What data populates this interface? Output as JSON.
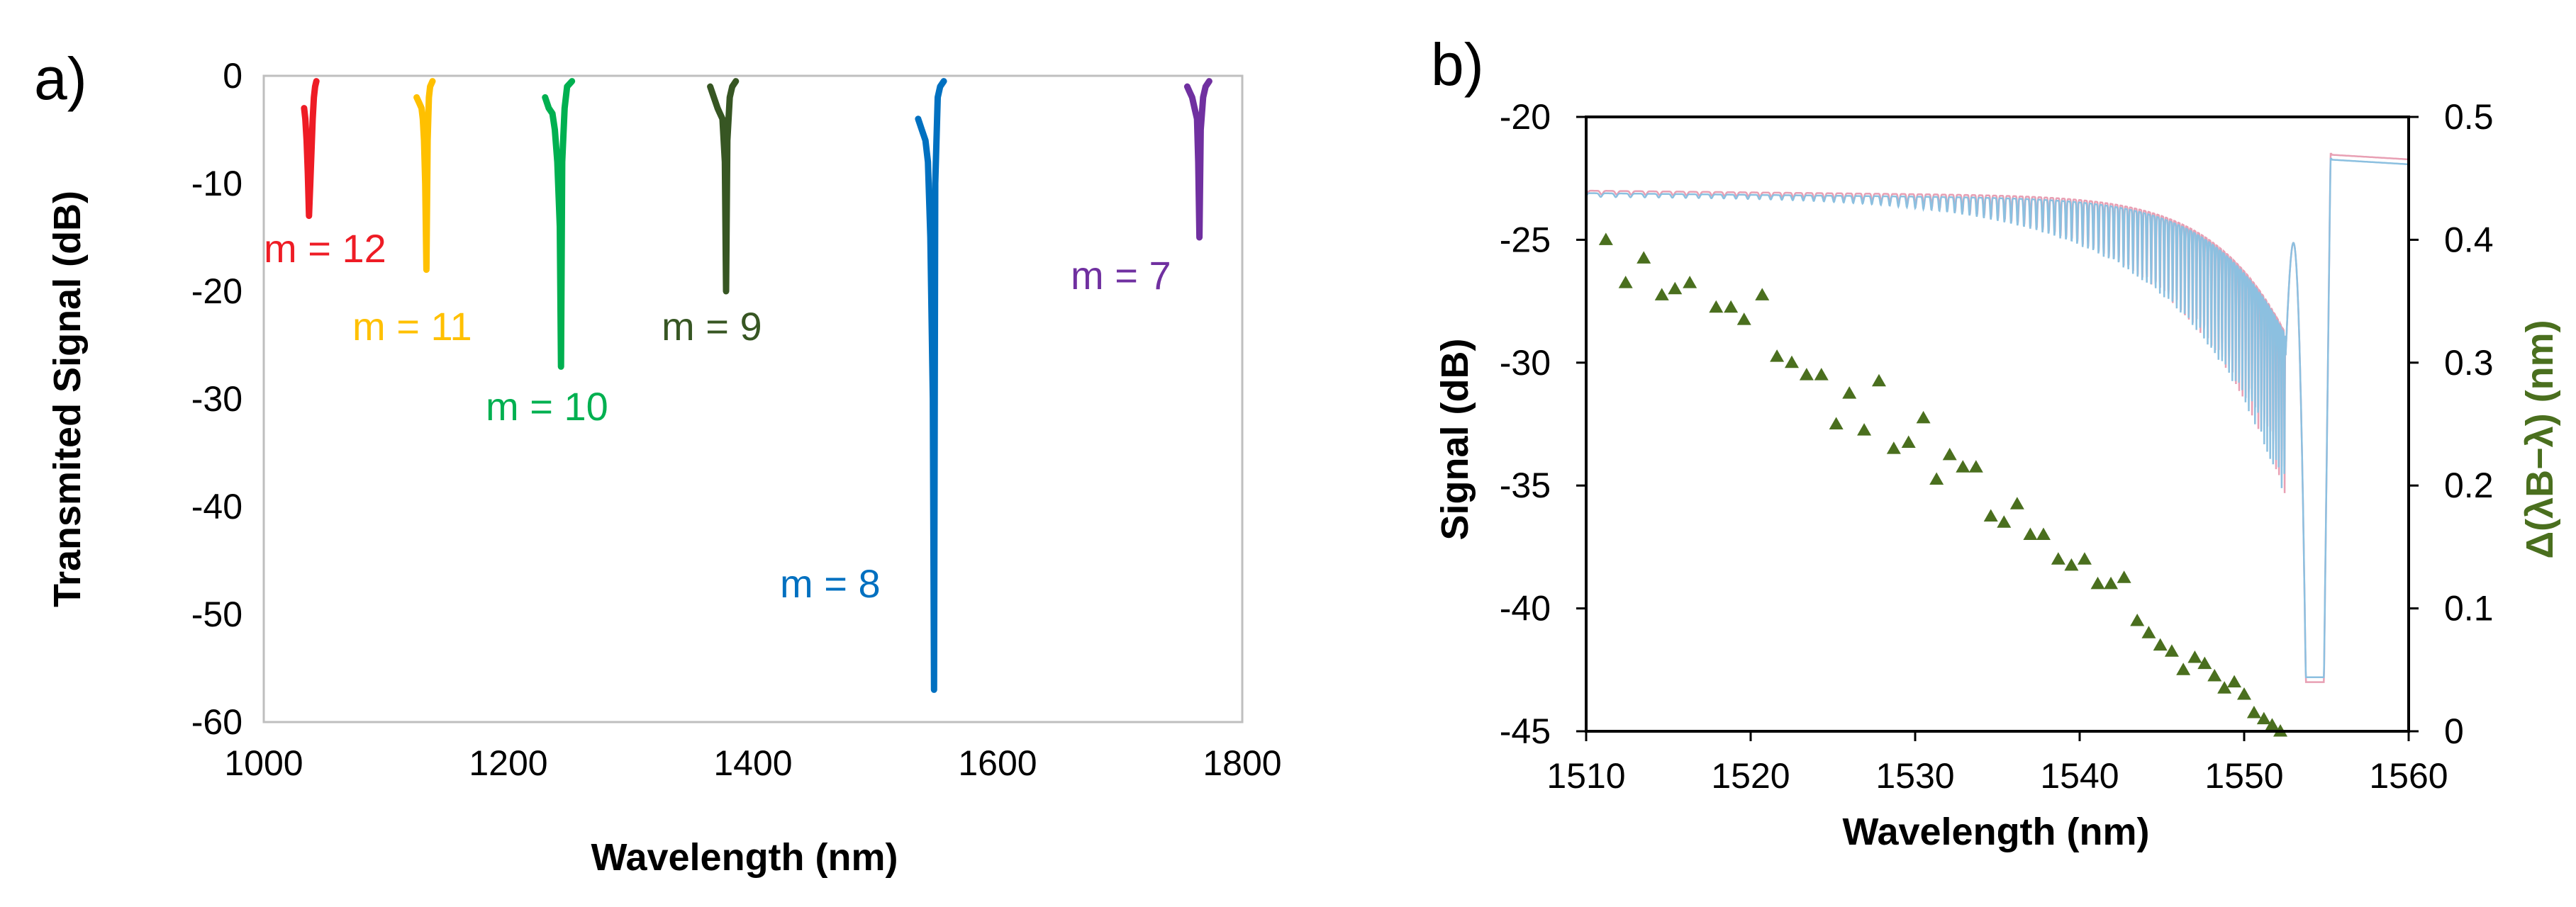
{
  "panels": {
    "a": {
      "label": "a)",
      "chart_data": {
        "type": "line",
        "title": "",
        "xlabel": "Wavelength (nm)",
        "ylabel": "Transmited Signal (dB)",
        "xlim": [
          1000,
          1800
        ],
        "ylim": [
          -60,
          0
        ],
        "xticks": [
          "1000",
          "1200",
          "1400",
          "1600",
          "1800"
        ],
        "yticks": [
          "0",
          "-10",
          "-20",
          "-30",
          "-40",
          "-50",
          "-60"
        ],
        "grid": false,
        "series": [
          {
            "name": "m = 12",
            "color": "#ee1c25",
            "center": 1038,
            "x": [
              1033,
              1034,
              1035,
              1036,
              1037,
              1038,
              1039,
              1040,
              1041,
              1042,
              1043
            ],
            "y": [
              -3,
              -4,
              -6,
              -9,
              -13,
              -10,
              -7,
              -4,
              -2,
              -1,
              -0.5
            ]
          },
          {
            "name": "m = 11",
            "color": "#ffc000",
            "center": 1133,
            "x": [
              1125,
              1127,
              1129,
              1130,
              1131,
              1132,
              1133,
              1134,
              1135,
              1136,
              1138
            ],
            "y": [
              -2,
              -2.5,
              -3,
              -4,
              -6,
              -10,
              -18,
              -6,
              -2,
              -1,
              -0.5
            ]
          },
          {
            "name": "m = 10",
            "color": "#00b050",
            "center": 1243,
            "x": [
              1230,
              1233,
              1236,
              1238,
              1240,
              1242,
              1243,
              1244,
              1246,
              1248,
              1252
            ],
            "y": [
              -2,
              -3,
              -3.5,
              -5,
              -8,
              -14,
              -27,
              -8,
              -3,
              -1,
              -0.5
            ]
          },
          {
            "name": "m = 9",
            "color": "#375623",
            "center": 1378,
            "x": [
              1365,
              1368,
              1371,
              1373,
              1375,
              1377,
              1378,
              1379,
              1381,
              1383,
              1386
            ],
            "y": [
              -1,
              -2,
              -3,
              -3.5,
              -4,
              -8,
              -20,
              -6,
              -2,
              -1,
              -0.5
            ]
          },
          {
            "name": "m = 8",
            "color": "#0070c0",
            "center": 1548,
            "x": [
              1535,
              1538,
              1541,
              1543,
              1545,
              1547,
              1548,
              1549,
              1551,
              1553,
              1556
            ],
            "y": [
              -4,
              -5,
              -6,
              -8,
              -15,
              -30,
              -57,
              -10,
              -2,
              -1,
              -0.5
            ]
          },
          {
            "name": "m = 7",
            "color": "#7030a0",
            "center": 1765,
            "x": [
              1755,
              1757,
              1759,
              1761,
              1763,
              1764,
              1765,
              1766,
              1768,
              1770,
              1773
            ],
            "y": [
              -1,
              -1.5,
              -2,
              -3,
              -4,
              -8,
              -15,
              -5,
              -2,
              -1,
              -0.5
            ]
          }
        ]
      }
    },
    "b": {
      "label": "b)",
      "chart_data": {
        "type": "line",
        "title": "",
        "xlabel": "Wavelength  (nm)",
        "ylabel": "Signal (dB)",
        "ylabel_right": "Δ(λB−λ) (nm)",
        "xlim": [
          1510,
          1560
        ],
        "ylim": [
          -45,
          -20
        ],
        "ylim_right": [
          0,
          0.5
        ],
        "xticks": [
          "1510",
          "1520",
          "1530",
          "1540",
          "1550",
          "1560"
        ],
        "yticks": [
          "-20",
          "-25",
          "-30",
          "-35",
          "-40",
          "-45"
        ],
        "yticks_right": [
          "0.5",
          "0.4",
          "0.3",
          "0.2",
          "0.1",
          "0"
        ],
        "grid": false,
        "series": [
          {
            "name": "signal-red",
            "color": "#e8a0b4",
            "baseline_db": -23,
            "fringe_start": 1510,
            "fringe_end": 1552.5,
            "dip_center": 1554.3,
            "dip_db": -43,
            "edge_db": -21.5
          },
          {
            "name": "signal-blue",
            "color": "#8cc0e0",
            "baseline_db": -23.1,
            "fringe_start": 1510,
            "fringe_end": 1552.5,
            "dip_center": 1554.3,
            "dip_db": -42.8,
            "edge_db": -21.7
          },
          {
            "name": "Δ(λB−λ)",
            "color": "#4a6f1e",
            "axis": "right",
            "marker": "triangle",
            "x": [
              1511.2,
              1512.4,
              1513.5,
              1514.6,
              1515.4,
              1516.3,
              1517.9,
              1518.8,
              1519.6,
              1520.7,
              1521.6,
              1522.5,
              1523.4,
              1524.3,
              1525.2,
              1526.0,
              1526.9,
              1527.8,
              1528.7,
              1529.6,
              1530.5,
              1531.3,
              1532.1,
              1532.9,
              1533.7,
              1534.6,
              1535.4,
              1536.2,
              1537.0,
              1537.8,
              1538.7,
              1539.5,
              1540.3,
              1541.1,
              1541.9,
              1542.7,
              1543.5,
              1544.2,
              1544.9,
              1545.6,
              1546.3,
              1547.0,
              1547.6,
              1548.2,
              1548.8,
              1549.4,
              1550.0,
              1550.6,
              1551.2,
              1551.7,
              1552.2
            ],
            "y": [
              0.4,
              0.365,
              0.385,
              0.355,
              0.36,
              0.365,
              0.345,
              0.345,
              0.335,
              0.355,
              0.305,
              0.3,
              0.29,
              0.29,
              0.25,
              0.275,
              0.245,
              0.285,
              0.23,
              0.235,
              0.255,
              0.205,
              0.225,
              0.215,
              0.215,
              0.175,
              0.17,
              0.185,
              0.16,
              0.16,
              0.14,
              0.135,
              0.14,
              0.12,
              0.12,
              0.125,
              0.09,
              0.08,
              0.07,
              0.065,
              0.05,
              0.06,
              0.055,
              0.045,
              0.035,
              0.04,
              0.03,
              0.015,
              0.01,
              0.005,
              0.0
            ]
          }
        ]
      }
    }
  }
}
